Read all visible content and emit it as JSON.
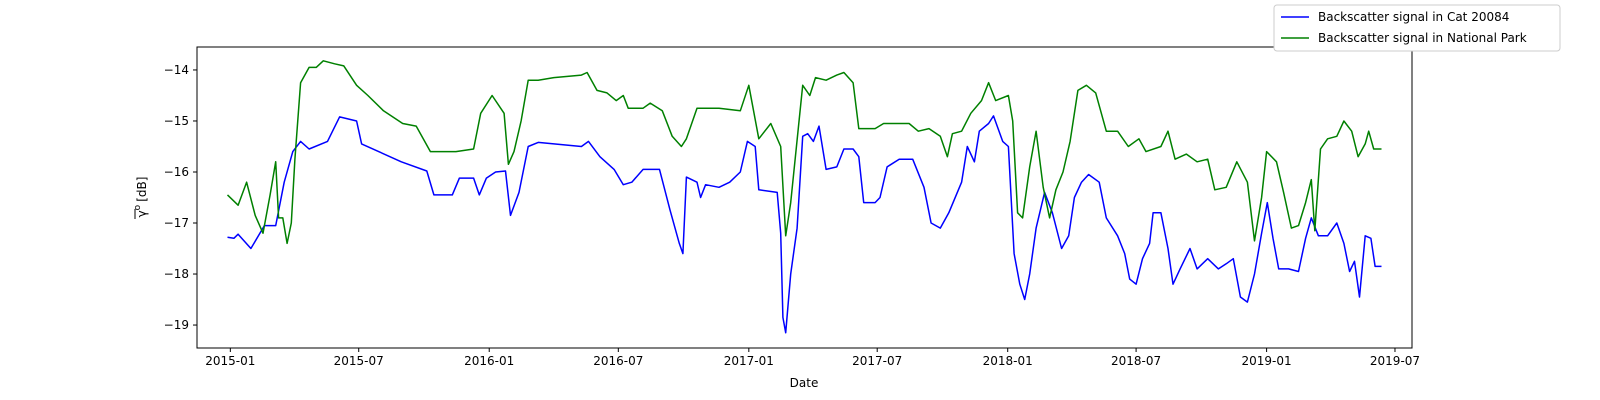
{
  "chart_data": {
    "type": "line",
    "xlabel": "Date",
    "ylabel": "γ̅° [dB]",
    "ylabel_parts": {
      "symbol": "γ",
      "superscript": "o",
      "unit": "[dB]"
    },
    "xlim": [
      "2014-11-15",
      "2019-07-25"
    ],
    "ylim": [
      -19.45,
      -13.55
    ],
    "x_ticks": [
      "2015-01",
      "2015-07",
      "2016-01",
      "2016-07",
      "2017-01",
      "2017-07",
      "2018-01",
      "2018-07",
      "2019-01",
      "2019-07"
    ],
    "y_ticks": [
      -19,
      -18,
      -17,
      -16,
      -15,
      -14
    ],
    "legend_position": "top-right",
    "grid": false,
    "series": [
      {
        "name": "Backscatter signal in Cat 20084",
        "color": "#0000ff",
        "points": [
          [
            "2014-12-28",
            -17.28
          ],
          [
            "2015-01-06",
            -17.3
          ],
          [
            "2015-01-12",
            -17.22
          ],
          [
            "2015-01-30",
            -17.5
          ],
          [
            "2015-02-18",
            -17.05
          ],
          [
            "2015-03-06",
            -17.05
          ],
          [
            "2015-03-18",
            -16.2
          ],
          [
            "2015-03-30",
            -15.6
          ],
          [
            "2015-04-10",
            -15.4
          ],
          [
            "2015-04-22",
            -15.55
          ],
          [
            "2015-05-18",
            -15.4
          ],
          [
            "2015-06-04",
            -14.92
          ],
          [
            "2015-06-28",
            -15.0
          ],
          [
            "2015-07-05",
            -15.45
          ],
          [
            "2015-08-30",
            -15.8
          ],
          [
            "2015-10-05",
            -15.98
          ],
          [
            "2015-10-15",
            -16.45
          ],
          [
            "2015-11-10",
            -16.45
          ],
          [
            "2015-11-20",
            -16.12
          ],
          [
            "2015-12-10",
            -16.12
          ],
          [
            "2015-12-18",
            -16.45
          ],
          [
            "2015-12-28",
            -16.12
          ],
          [
            "2016-01-10",
            -16.0
          ],
          [
            "2016-01-24",
            -15.98
          ],
          [
            "2016-01-31",
            -16.85
          ],
          [
            "2016-02-12",
            -16.4
          ],
          [
            "2016-02-25",
            -15.5
          ],
          [
            "2016-03-10",
            -15.42
          ],
          [
            "2016-05-10",
            -15.5
          ],
          [
            "2016-05-20",
            -15.4
          ],
          [
            "2016-06-05",
            -15.7
          ],
          [
            "2016-06-25",
            -15.95
          ],
          [
            "2016-07-08",
            -16.25
          ],
          [
            "2016-07-20",
            -16.2
          ],
          [
            "2016-08-05",
            -15.95
          ],
          [
            "2016-08-28",
            -15.95
          ],
          [
            "2016-09-12",
            -16.75
          ],
          [
            "2016-09-25",
            -17.4
          ],
          [
            "2016-09-30",
            -17.6
          ],
          [
            "2016-10-05",
            -16.1
          ],
          [
            "2016-10-20",
            -16.2
          ],
          [
            "2016-10-25",
            -16.5
          ],
          [
            "2016-11-01",
            -16.25
          ],
          [
            "2016-11-20",
            -16.3
          ],
          [
            "2016-12-05",
            -16.2
          ],
          [
            "2016-12-20",
            -16.0
          ],
          [
            "2016-12-30",
            -15.4
          ],
          [
            "2017-01-10",
            -15.5
          ],
          [
            "2017-01-15",
            -16.35
          ],
          [
            "2017-02-10",
            -16.4
          ],
          [
            "2017-02-15",
            -17.2
          ],
          [
            "2017-02-18",
            -18.85
          ],
          [
            "2017-02-22",
            -19.15
          ],
          [
            "2017-03-01",
            -18.0
          ],
          [
            "2017-03-10",
            -17.1
          ],
          [
            "2017-03-18",
            -15.3
          ],
          [
            "2017-03-25",
            -15.25
          ],
          [
            "2017-04-02",
            -15.4
          ],
          [
            "2017-04-10",
            -15.1
          ],
          [
            "2017-04-20",
            -15.95
          ],
          [
            "2017-05-05",
            -15.9
          ],
          [
            "2017-05-15",
            -15.55
          ],
          [
            "2017-05-28",
            -15.55
          ],
          [
            "2017-06-05",
            -15.7
          ],
          [
            "2017-06-12",
            -16.6
          ],
          [
            "2017-06-28",
            -16.6
          ],
          [
            "2017-07-05",
            -16.5
          ],
          [
            "2017-07-15",
            -15.9
          ],
          [
            "2017-08-01",
            -15.75
          ],
          [
            "2017-08-20",
            -15.75
          ],
          [
            "2017-09-05",
            -16.3
          ],
          [
            "2017-09-15",
            -17.0
          ],
          [
            "2017-09-28",
            -17.1
          ],
          [
            "2017-10-10",
            -16.8
          ],
          [
            "2017-10-28",
            -16.2
          ],
          [
            "2017-11-05",
            -15.5
          ],
          [
            "2017-11-15",
            -15.8
          ],
          [
            "2017-11-22",
            -15.2
          ],
          [
            "2017-12-05",
            -15.05
          ],
          [
            "2017-12-12",
            -14.9
          ],
          [
            "2017-12-25",
            -15.4
          ],
          [
            "2018-01-02",
            -15.5
          ],
          [
            "2018-01-10",
            -17.6
          ],
          [
            "2018-01-18",
            -18.2
          ],
          [
            "2018-01-25",
            -18.5
          ],
          [
            "2018-02-01",
            -18.0
          ],
          [
            "2018-02-10",
            -17.1
          ],
          [
            "2018-02-22",
            -16.4
          ],
          [
            "2018-03-05",
            -16.8
          ],
          [
            "2018-03-18",
            -17.5
          ],
          [
            "2018-03-28",
            -17.25
          ],
          [
            "2018-04-05",
            -16.5
          ],
          [
            "2018-04-15",
            -16.2
          ],
          [
            "2018-04-25",
            -16.05
          ],
          [
            "2018-05-10",
            -16.2
          ],
          [
            "2018-05-20",
            -16.9
          ],
          [
            "2018-06-05",
            -17.25
          ],
          [
            "2018-06-15",
            -17.6
          ],
          [
            "2018-06-22",
            -18.1
          ],
          [
            "2018-07-01",
            -18.2
          ],
          [
            "2018-07-10",
            -17.7
          ],
          [
            "2018-07-20",
            -17.4
          ],
          [
            "2018-07-25",
            -16.8
          ],
          [
            "2018-08-05",
            -16.8
          ],
          [
            "2018-08-15",
            -17.5
          ],
          [
            "2018-08-22",
            -18.2
          ],
          [
            "2018-09-01",
            -17.9
          ],
          [
            "2018-09-15",
            -17.5
          ],
          [
            "2018-09-25",
            -17.9
          ],
          [
            "2018-10-10",
            -17.7
          ],
          [
            "2018-10-25",
            -17.9
          ],
          [
            "2018-11-05",
            -17.8
          ],
          [
            "2018-11-15",
            -17.7
          ],
          [
            "2018-11-25",
            -18.45
          ],
          [
            "2018-12-05",
            -18.55
          ],
          [
            "2018-12-15",
            -18.0
          ],
          [
            "2018-12-25",
            -17.2
          ],
          [
            "2019-01-02",
            -16.6
          ],
          [
            "2019-01-10",
            -17.3
          ],
          [
            "2019-01-18",
            -17.9
          ],
          [
            "2019-02-01",
            -17.9
          ],
          [
            "2019-02-15",
            -17.95
          ],
          [
            "2019-02-25",
            -17.3
          ],
          [
            "2019-03-05",
            -16.9
          ],
          [
            "2019-03-15",
            -17.25
          ],
          [
            "2019-03-28",
            -17.25
          ],
          [
            "2019-04-10",
            -17.0
          ],
          [
            "2019-04-20",
            -17.4
          ],
          [
            "2019-04-28",
            -17.95
          ],
          [
            "2019-05-05",
            -17.75
          ],
          [
            "2019-05-12",
            -18.45
          ],
          [
            "2019-05-20",
            -17.25
          ],
          [
            "2019-05-28",
            -17.3
          ],
          [
            "2019-06-03",
            -17.85
          ],
          [
            "2019-06-12",
            -17.85
          ]
        ]
      },
      {
        "name": "Backscatter signal in National Park",
        "color": "#008000",
        "points": [
          [
            "2014-12-28",
            -16.45
          ],
          [
            "2015-01-12",
            -16.65
          ],
          [
            "2015-01-24",
            -16.2
          ],
          [
            "2015-02-05",
            -16.85
          ],
          [
            "2015-02-16",
            -17.2
          ],
          [
            "2015-02-26",
            -16.45
          ],
          [
            "2015-03-06",
            -15.8
          ],
          [
            "2015-03-10",
            -16.9
          ],
          [
            "2015-03-16",
            -16.9
          ],
          [
            "2015-03-22",
            -17.4
          ],
          [
            "2015-03-28",
            -17.0
          ],
          [
            "2015-04-02",
            -15.75
          ],
          [
            "2015-04-10",
            -14.25
          ],
          [
            "2015-04-22",
            -13.95
          ],
          [
            "2015-05-02",
            -13.95
          ],
          [
            "2015-05-12",
            -13.82
          ],
          [
            "2015-05-28",
            -13.88
          ],
          [
            "2015-06-10",
            -13.92
          ],
          [
            "2015-06-28",
            -14.3
          ],
          [
            "2015-07-14",
            -14.5
          ],
          [
            "2015-08-05",
            -14.8
          ],
          [
            "2015-09-01",
            -15.05
          ],
          [
            "2015-09-20",
            -15.1
          ],
          [
            "2015-10-10",
            -15.6
          ],
          [
            "2015-11-15",
            -15.6
          ],
          [
            "2015-12-10",
            -15.55
          ],
          [
            "2015-12-20",
            -14.85
          ],
          [
            "2016-01-05",
            -14.5
          ],
          [
            "2016-01-22",
            -14.85
          ],
          [
            "2016-01-28",
            -15.85
          ],
          [
            "2016-02-05",
            -15.6
          ],
          [
            "2016-02-15",
            -15.0
          ],
          [
            "2016-02-25",
            -14.2
          ],
          [
            "2016-03-10",
            -14.2
          ],
          [
            "2016-04-01",
            -14.15
          ],
          [
            "2016-05-10",
            -14.1
          ],
          [
            "2016-05-18",
            -14.05
          ],
          [
            "2016-06-01",
            -14.4
          ],
          [
            "2016-06-15",
            -14.45
          ],
          [
            "2016-06-28",
            -14.6
          ],
          [
            "2016-07-08",
            -14.5
          ],
          [
            "2016-07-15",
            -14.75
          ],
          [
            "2016-08-05",
            -14.75
          ],
          [
            "2016-08-15",
            -14.65
          ],
          [
            "2016-09-01",
            -14.8
          ],
          [
            "2016-09-15",
            -15.3
          ],
          [
            "2016-09-28",
            -15.5
          ],
          [
            "2016-10-05",
            -15.35
          ],
          [
            "2016-10-20",
            -14.75
          ],
          [
            "2016-11-20",
            -14.75
          ],
          [
            "2016-12-20",
            -14.8
          ],
          [
            "2017-01-01",
            -14.3
          ],
          [
            "2017-01-15",
            -15.35
          ],
          [
            "2017-02-01",
            -15.05
          ],
          [
            "2017-02-15",
            -15.5
          ],
          [
            "2017-02-22",
            -17.25
          ],
          [
            "2017-03-01",
            -16.6
          ],
          [
            "2017-03-18",
            -14.3
          ],
          [
            "2017-03-28",
            -14.5
          ],
          [
            "2017-04-05",
            -14.15
          ],
          [
            "2017-04-20",
            -14.2
          ],
          [
            "2017-05-05",
            -14.1
          ],
          [
            "2017-05-15",
            -14.05
          ],
          [
            "2017-05-28",
            -14.25
          ],
          [
            "2017-06-05",
            -15.15
          ],
          [
            "2017-06-28",
            -15.15
          ],
          [
            "2017-07-10",
            -15.05
          ],
          [
            "2017-08-15",
            -15.05
          ],
          [
            "2017-08-28",
            -15.2
          ],
          [
            "2017-09-12",
            -15.15
          ],
          [
            "2017-09-28",
            -15.3
          ],
          [
            "2017-10-08",
            -15.7
          ],
          [
            "2017-10-15",
            -15.25
          ],
          [
            "2017-10-28",
            -15.2
          ],
          [
            "2017-11-10",
            -14.85
          ],
          [
            "2017-11-25",
            -14.6
          ],
          [
            "2017-12-05",
            -14.25
          ],
          [
            "2017-12-15",
            -14.6
          ],
          [
            "2018-01-02",
            -14.5
          ],
          [
            "2018-01-08",
            -15.0
          ],
          [
            "2018-01-15",
            -16.8
          ],
          [
            "2018-01-22",
            -16.9
          ],
          [
            "2018-02-01",
            -15.9
          ],
          [
            "2018-02-10",
            -15.2
          ],
          [
            "2018-02-20",
            -16.3
          ],
          [
            "2018-03-01",
            -16.9
          ],
          [
            "2018-03-10",
            -16.35
          ],
          [
            "2018-03-20",
            -16.0
          ],
          [
            "2018-03-30",
            -15.4
          ],
          [
            "2018-04-10",
            -14.4
          ],
          [
            "2018-04-22",
            -14.3
          ],
          [
            "2018-05-05",
            -14.45
          ],
          [
            "2018-05-20",
            -15.2
          ],
          [
            "2018-06-05",
            -15.2
          ],
          [
            "2018-06-20",
            -15.5
          ],
          [
            "2018-07-05",
            -15.35
          ],
          [
            "2018-07-15",
            -15.6
          ],
          [
            "2018-08-05",
            -15.5
          ],
          [
            "2018-08-15",
            -15.2
          ],
          [
            "2018-08-25",
            -15.75
          ],
          [
            "2018-09-10",
            -15.65
          ],
          [
            "2018-09-25",
            -15.8
          ],
          [
            "2018-10-10",
            -15.75
          ],
          [
            "2018-10-20",
            -16.35
          ],
          [
            "2018-11-05",
            -16.3
          ],
          [
            "2018-11-20",
            -15.8
          ],
          [
            "2018-12-05",
            -16.2
          ],
          [
            "2018-12-15",
            -17.35
          ],
          [
            "2018-12-25",
            -16.5
          ],
          [
            "2019-01-01",
            -15.6
          ],
          [
            "2019-01-15",
            -15.8
          ],
          [
            "2019-01-25",
            -16.4
          ],
          [
            "2019-02-05",
            -17.1
          ],
          [
            "2019-02-15",
            -17.05
          ],
          [
            "2019-02-25",
            -16.6
          ],
          [
            "2019-03-05",
            -16.15
          ],
          [
            "2019-03-10",
            -17.15
          ],
          [
            "2019-03-18",
            -15.55
          ],
          [
            "2019-03-28",
            -15.35
          ],
          [
            "2019-04-10",
            -15.3
          ],
          [
            "2019-04-20",
            -15.0
          ],
          [
            "2019-05-01",
            -15.2
          ],
          [
            "2019-05-10",
            -15.7
          ],
          [
            "2019-05-20",
            -15.45
          ],
          [
            "2019-05-25",
            -15.2
          ],
          [
            "2019-06-01",
            -15.55
          ],
          [
            "2019-06-12",
            -15.55
          ]
        ]
      }
    ]
  }
}
